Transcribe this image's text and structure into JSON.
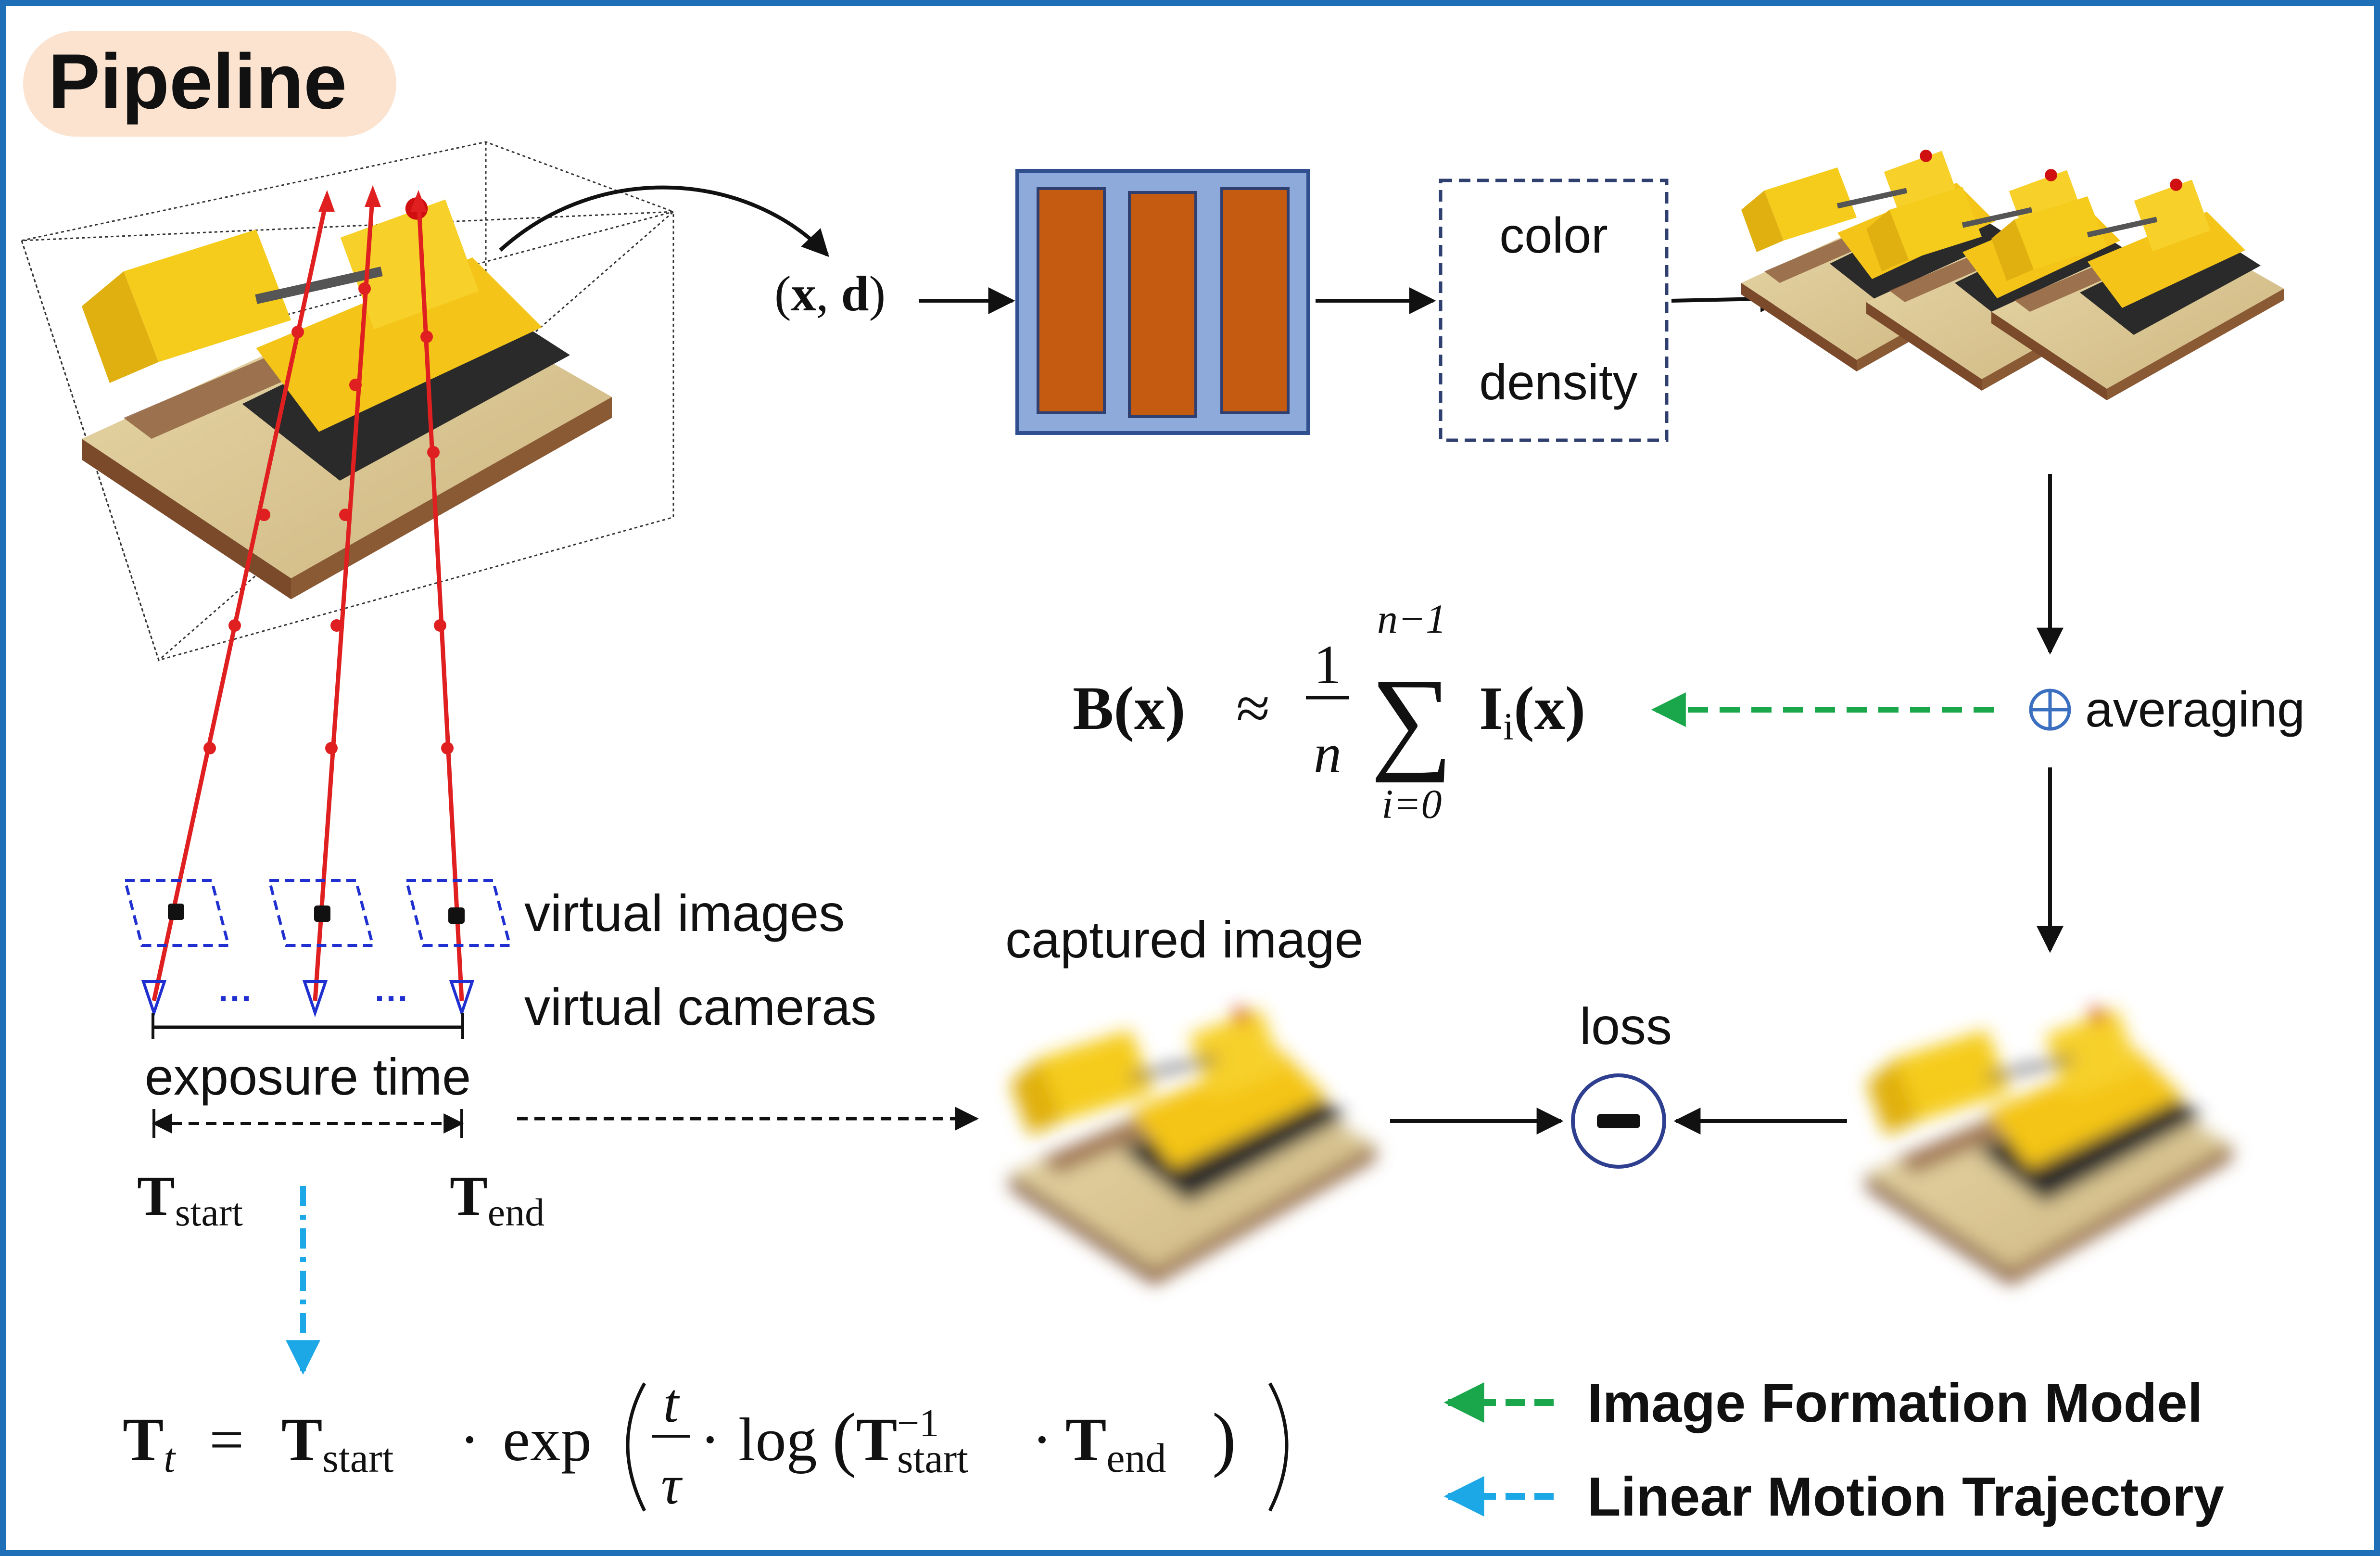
{
  "title": "Pipeline",
  "input_label": {
    "open": "(",
    "x": "x",
    "comma": ", ",
    "d": "d",
    "close": ")"
  },
  "mlp_outputs": {
    "color": "color",
    "density": "density"
  },
  "averaging": {
    "label": "averaging",
    "symbol": "⊕"
  },
  "blur_formula": {
    "lhs": "B(x)",
    "approx": "≈",
    "numerator": "1",
    "denominator": "n",
    "sum_upper": "n−1",
    "sum_lower": "i=0",
    "sum_symbol": "∑",
    "term": "I",
    "term_sub": "i",
    "term_arg": "(x)"
  },
  "virtual": {
    "images_label": "virtual images",
    "cameras_label": "virtual cameras",
    "dots": "···"
  },
  "exposure": {
    "label": "exposure time",
    "t_start": "T",
    "t_start_sub": "start",
    "t_end": "T",
    "t_end_sub": "end"
  },
  "captured_label": "captured image",
  "loss": {
    "label": "loss"
  },
  "trajectory_formula": {
    "T": "T",
    "sub_t": "t",
    "eq": "=",
    "start_sub": "start",
    "dot": "·",
    "exp": "exp",
    "frac_num": "t",
    "frac_den": "τ",
    "log": "log",
    "inv": "−1",
    "end_sub": "end"
  },
  "legend": [
    {
      "label": "Image Formation Model",
      "color": "#1aa64a"
    },
    {
      "label": "Linear Motion Trajectory",
      "color": "#1ca7e6"
    }
  ],
  "colors": {
    "frame": "#1f6fb8",
    "title_bg": "#fbe3d0",
    "mlp_outer": "#8eaadb",
    "mlp_inner": "#c55a11",
    "ray": "#e02020",
    "camera": "#1f2fd0",
    "loss_circle": "#2f3f8f",
    "plus": "#3b6fc0"
  }
}
